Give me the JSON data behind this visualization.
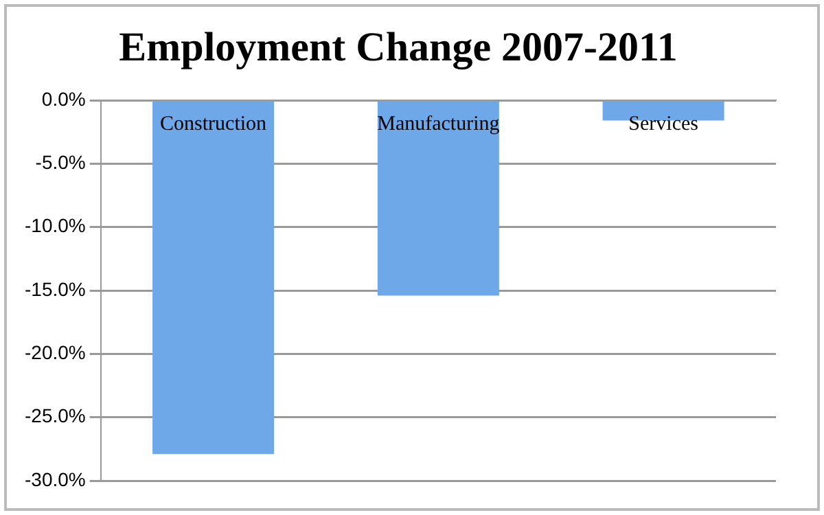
{
  "chart_data": {
    "type": "bar",
    "title": "Employment Change 2007-2011",
    "categories": [
      "Construction",
      "Manufacturing",
      "Services"
    ],
    "values": [
      -27.9,
      -15.4,
      -1.6
    ],
    "color": "#6fa8e8",
    "ylim": [
      -30,
      0
    ],
    "yticks": [
      {
        "value": 0,
        "label": "0.0%"
      },
      {
        "value": -5,
        "label": "-5.0%"
      },
      {
        "value": -10,
        "label": "-10.0%"
      },
      {
        "value": -15,
        "label": "-15.0%"
      },
      {
        "value": -20,
        "label": "-20.0%"
      },
      {
        "value": -25,
        "label": "-25.0%"
      },
      {
        "value": -30,
        "label": "-30.0%"
      }
    ],
    "grid": "y",
    "legend": false
  }
}
